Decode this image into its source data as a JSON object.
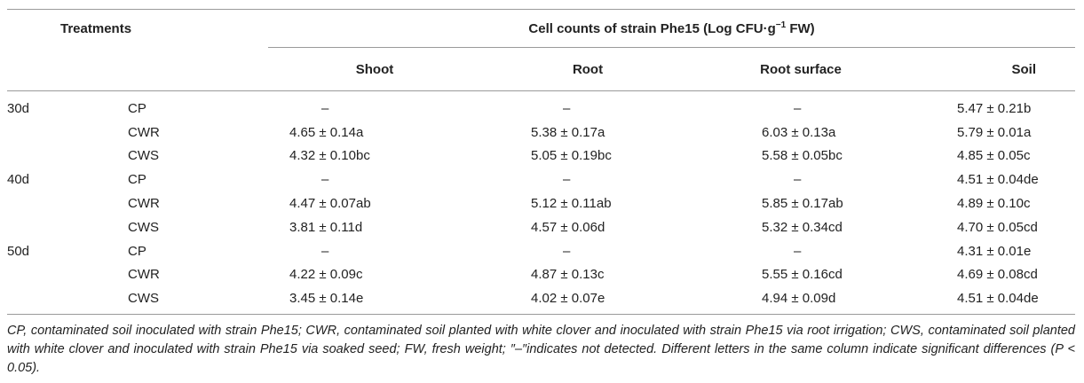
{
  "table": {
    "header": {
      "treatments": "Treatments",
      "group_title_main": "Cell counts of strain Phe15 (Log CFU·g",
      "group_title_sup": "−1",
      "group_title_tail": " FW)",
      "columns": [
        "Shoot",
        "Root",
        "Root surface",
        "Soil"
      ]
    },
    "rows": [
      {
        "day": "30d",
        "trt": "CP",
        "shoot": "–",
        "root": "–",
        "rs": "–",
        "soil": "5.47 ± 0.21b"
      },
      {
        "day": "",
        "trt": "CWR",
        "shoot": "4.65 ± 0.14a",
        "root": "5.38 ± 0.17a",
        "rs": "6.03 ± 0.13a",
        "soil": "5.79 ± 0.01a"
      },
      {
        "day": "",
        "trt": "CWS",
        "shoot": "4.32 ± 0.10bc",
        "root": "5.05 ± 0.19bc",
        "rs": "5.58 ± 0.05bc",
        "soil": "4.85 ± 0.05c"
      },
      {
        "day": "40d",
        "trt": "CP",
        "shoot": "–",
        "root": "–",
        "rs": "–",
        "soil": "4.51 ± 0.04de"
      },
      {
        "day": "",
        "trt": "CWR",
        "shoot": "4.47 ± 0.07ab",
        "root": "5.12 ± 0.11ab",
        "rs": "5.85 ± 0.17ab",
        "soil": "4.89 ± 0.10c"
      },
      {
        "day": "",
        "trt": "CWS",
        "shoot": "3.81 ± 0.11d",
        "root": "4.57 ± 0.06d",
        "rs": "5.32 ± 0.34cd",
        "soil": "4.70 ± 0.05cd"
      },
      {
        "day": "50d",
        "trt": "CP",
        "shoot": "–",
        "root": "–",
        "rs": "–",
        "soil": "4.31 ± 0.01e"
      },
      {
        "day": "",
        "trt": "CWR",
        "shoot": "4.22 ± 0.09c",
        "root": "4.87 ± 0.13c",
        "rs": "5.55 ± 0.16cd",
        "soil": "4.69 ± 0.08cd"
      },
      {
        "day": "",
        "trt": "CWS",
        "shoot": "3.45 ± 0.14e",
        "root": "4.02 ± 0.07e",
        "rs": "4.94 ± 0.09d",
        "soil": "4.51 ± 0.04de"
      }
    ]
  },
  "footnote": "CP, contaminated soil inoculated with strain Phe15; CWR, contaminated soil planted with white clover and inoculated with strain Phe15 via root irrigation; CWS, contaminated soil planted with white clover and inoculated with strain Phe15 via soaked seed; FW, fresh weight; ″–″indicates not detected. Different letters in the same column indicate significant differences (P < 0.05)."
}
